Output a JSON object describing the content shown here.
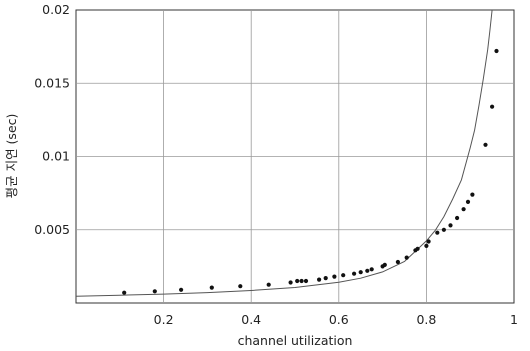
{
  "chart_data": {
    "type": "scatter",
    "xlabel": "channel utilization",
    "ylabel": "평균 지연 (sec)",
    "xlim": [
      0,
      1
    ],
    "ylim": [
      0,
      0.02
    ],
    "grid": true,
    "x_ticks": [
      {
        "value": 0.2,
        "label": "0.2"
      },
      {
        "value": 0.4,
        "label": "0.4"
      },
      {
        "value": 0.6,
        "label": "0.6"
      },
      {
        "value": 0.8,
        "label": "0.8"
      },
      {
        "value": 1.0,
        "label": "1"
      }
    ],
    "y_ticks": [
      {
        "value": 0.005,
        "label": "0.005"
      },
      {
        "value": 0.01,
        "label": "0.01"
      },
      {
        "value": 0.015,
        "label": "0.015"
      },
      {
        "value": 0.02,
        "label": "0.02"
      }
    ],
    "series": [
      {
        "kind": "points",
        "x": [
          0.11,
          0.18,
          0.24,
          0.31,
          0.375,
          0.44,
          0.49,
          0.505,
          0.515,
          0.525,
          0.555,
          0.57,
          0.59,
          0.61,
          0.635,
          0.65,
          0.665,
          0.675,
          0.7,
          0.705,
          0.735,
          0.755,
          0.775,
          0.78,
          0.8,
          0.805,
          0.825,
          0.84,
          0.855,
          0.87,
          0.885,
          0.895,
          0.905,
          0.935,
          0.95,
          0.96
        ],
        "y": [
          0.0007,
          0.0008,
          0.0009,
          0.00105,
          0.00115,
          0.00125,
          0.0014,
          0.0015,
          0.0015,
          0.0015,
          0.0016,
          0.0017,
          0.0018,
          0.0019,
          0.002,
          0.0021,
          0.0022,
          0.0023,
          0.0025,
          0.0026,
          0.0028,
          0.0031,
          0.0036,
          0.0037,
          0.0039,
          0.0042,
          0.0048,
          0.005,
          0.0053,
          0.0058,
          0.0064,
          0.0069,
          0.0074,
          0.0108,
          0.0134,
          0.0172
        ]
      },
      {
        "kind": "curve",
        "x": [
          0.0,
          0.1,
          0.2,
          0.3,
          0.4,
          0.5,
          0.6,
          0.65,
          0.7,
          0.75,
          0.8,
          0.82,
          0.84,
          0.86,
          0.88,
          0.9,
          0.91,
          0.92,
          0.93,
          0.94,
          0.945,
          0.95
        ],
        "y": [
          0.00046,
          0.00053,
          0.00061,
          0.00071,
          0.00085,
          0.00106,
          0.00141,
          0.00169,
          0.00212,
          0.00283,
          0.00424,
          0.00495,
          0.0059,
          0.0071,
          0.0084,
          0.0106,
          0.0118,
          0.0135,
          0.0153,
          0.0173,
          0.0186,
          0.02
        ]
      }
    ]
  }
}
